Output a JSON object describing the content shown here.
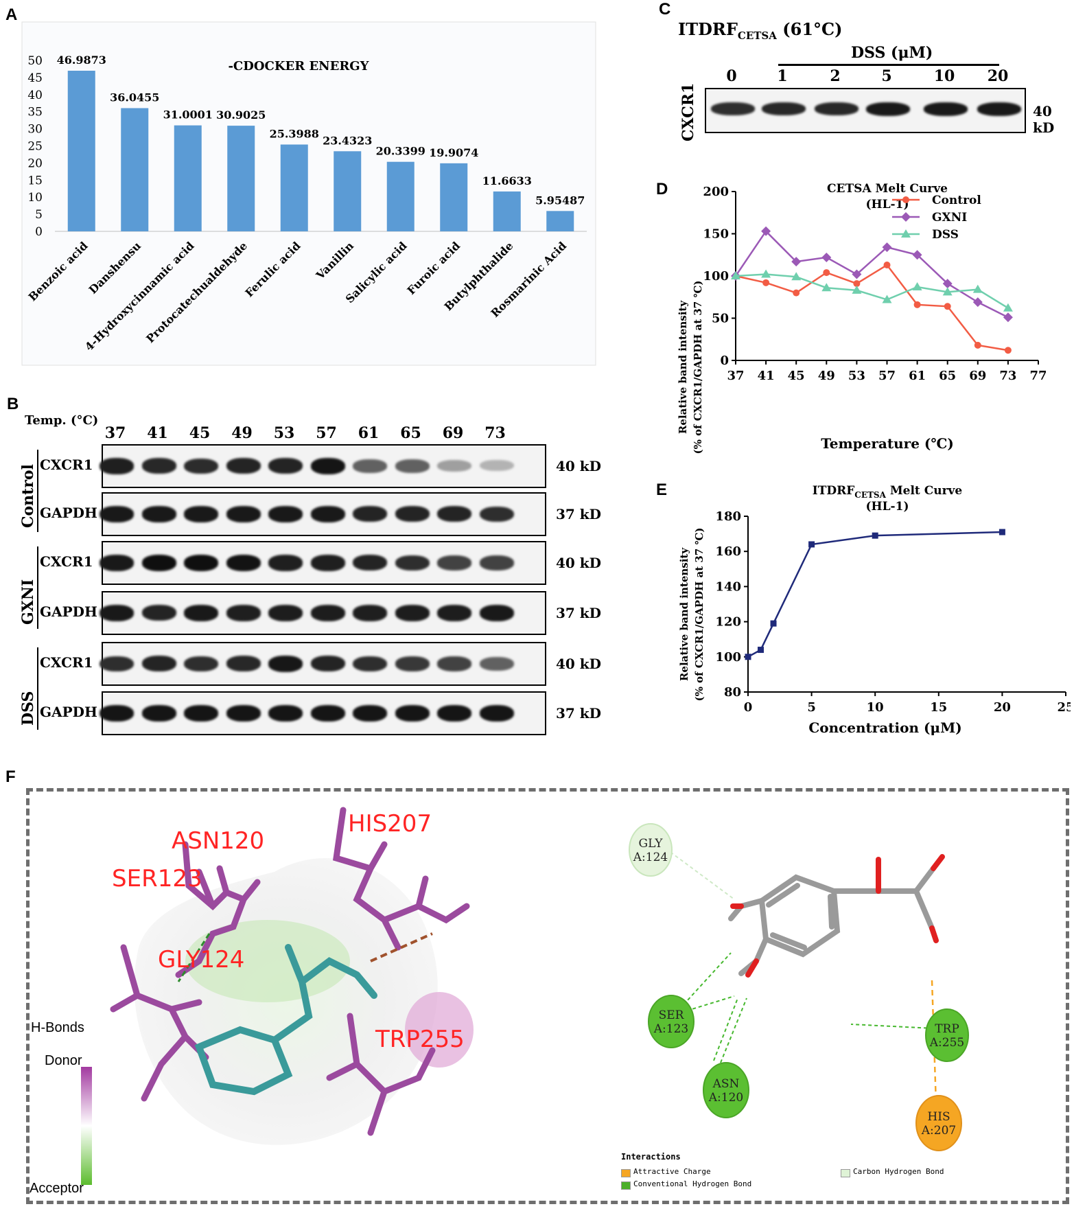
{
  "panels": {
    "A": "A",
    "B": "B",
    "C": "C",
    "D": "D",
    "E": "E",
    "F": "F"
  },
  "colors": {
    "bar": "#5b9bd5",
    "control": "#f25c44",
    "gxni": "#9b59b6",
    "dss": "#6fcfad",
    "itdrf": "#1f2a7a",
    "residue": "#ff2424",
    "ligand": "#3a9a9a"
  },
  "chart_data": [
    {
      "panel": "A",
      "type": "bar",
      "title": "-CDOCKER ENERGY",
      "categories": [
        "Benzoic acid",
        "Danshensu",
        "4-Hydroxycinnamic acid",
        "Protocatechualdehyde",
        "Ferulic acid",
        "Vanillin",
        "Salicylic acid",
        "Furoic acid",
        "Butylphthalide",
        "Rosmarinic Acid"
      ],
      "values": [
        46.9873,
        36.0455,
        31.0001,
        30.9025,
        25.3988,
        23.4323,
        20.3399,
        19.9074,
        11.6633,
        5.95487
      ],
      "value_labels": [
        "46.9873",
        "36.0455",
        "31.0001",
        "30.9025",
        "25.3988",
        "23.4323",
        "20.3399",
        "19.9074",
        "11.6633",
        "5.95487"
      ],
      "ylim": [
        0,
        50
      ],
      "yticks": [
        0,
        5,
        10,
        15,
        20,
        25,
        30,
        35,
        40,
        45,
        50
      ]
    },
    {
      "panel": "D",
      "type": "line",
      "title": "CETSA Melt Curve",
      "subtitle": "(HL-1)",
      "xlabel": "Temperature (℃)",
      "ylabel": "Relative band intensity",
      "ylabel2": "(% of CXCR1/GAPDH at 37 ℃)",
      "x": [
        37,
        41,
        45,
        49,
        53,
        57,
        61,
        65,
        69,
        73
      ],
      "xlim": [
        37,
        77
      ],
      "xticks": [
        37,
        41,
        45,
        49,
        53,
        57,
        61,
        65,
        69,
        73,
        77
      ],
      "ylim": [
        0,
        200
      ],
      "yticks": [
        0,
        50,
        100,
        150,
        200
      ],
      "legend": "top-right",
      "series": [
        {
          "name": "Control",
          "marker": "circle",
          "values": [
            100,
            92,
            80,
            104,
            91,
            113,
            66,
            64,
            18,
            12
          ]
        },
        {
          "name": "GXNI",
          "marker": "diamond",
          "values": [
            100,
            153,
            117,
            122,
            102,
            134,
            125,
            91,
            69,
            51
          ]
        },
        {
          "name": "DSS",
          "marker": "triangle",
          "values": [
            100,
            102,
            99,
            86,
            83,
            72,
            87,
            81,
            84,
            62
          ]
        }
      ]
    },
    {
      "panel": "E",
      "type": "line",
      "title": "ITDRF",
      "title_sub": "CETSA",
      "title_rest": " Melt Curve",
      "subtitle": "(HL-1)",
      "xlabel": "Concentration (μM)",
      "ylabel": "Relative band intensity",
      "ylabel2": "(% of CXCR1/GAPDH at 37 ℃)",
      "x": [
        0,
        1,
        2,
        5,
        10,
        20
      ],
      "xlim": [
        0,
        25
      ],
      "xticks": [
        0,
        5,
        10,
        15,
        20,
        25
      ],
      "ylim": [
        80,
        180
      ],
      "yticks": [
        80,
        100,
        120,
        140,
        160,
        180
      ],
      "series": [
        {
          "marker": "square",
          "values": [
            100,
            104,
            119,
            164,
            169,
            171
          ]
        }
      ]
    }
  ],
  "panel_b": {
    "temp_header": "Temp. (°C)",
    "temps": [
      "37",
      "41",
      "45",
      "49",
      "53",
      "57",
      "61",
      "65",
      "69",
      "73"
    ],
    "rows": [
      {
        "group": "Control",
        "label": "CXCR1",
        "mw": "40 kD",
        "intensity": [
          0.92,
          0.88,
          0.86,
          0.9,
          0.9,
          0.97,
          0.6,
          0.6,
          0.3,
          0.2
        ]
      },
      {
        "group": "",
        "label": "GAPDH",
        "mw": "37 kD",
        "intensity": [
          0.95,
          0.95,
          0.95,
          0.95,
          0.95,
          0.95,
          0.9,
          0.9,
          0.9,
          0.85
        ]
      },
      {
        "group": "GXNI",
        "label": "CXCR1",
        "mw": "40 kD",
        "intensity": [
          0.95,
          1,
          1,
          0.98,
          0.92,
          0.92,
          0.9,
          0.85,
          0.75,
          0.75
        ]
      },
      {
        "group": "",
        "label": "GAPDH",
        "mw": "37 kD",
        "intensity": [
          0.95,
          0.9,
          0.95,
          0.92,
          0.93,
          0.93,
          0.92,
          0.93,
          0.93,
          0.95
        ]
      },
      {
        "group": "DSS",
        "label": "CXCR1",
        "mw": "40 kD",
        "intensity": [
          0.85,
          0.9,
          0.85,
          0.88,
          0.96,
          0.9,
          0.85,
          0.8,
          0.75,
          0.6
        ]
      },
      {
        "group": "",
        "label": "GAPDH",
        "mw": "37 kD",
        "intensity": [
          0.97,
          0.97,
          0.97,
          0.97,
          0.97,
          0.97,
          0.97,
          0.97,
          0.97,
          0.97
        ]
      }
    ]
  },
  "panel_c": {
    "title": "ITDRF",
    "title_sub": "CETSA",
    "title_rest": " (61°C)",
    "treatment": "DSS (μM)",
    "concentrations": [
      "0",
      "1",
      "2",
      "5",
      "10",
      "20"
    ],
    "row_label": "CXCR1",
    "mw": "40 kD",
    "intensity": [
      0.85,
      0.88,
      0.88,
      0.95,
      0.95,
      0.95
    ]
  },
  "panel_f": {
    "residues_3d": [
      "ASN120",
      "SER123",
      "HIS207",
      "GLY124",
      "TRP255"
    ],
    "legend_title": "H-Bonds",
    "donor": "Donor",
    "acceptor": "Acceptor",
    "nodes": [
      {
        "label": "GLY\nA:124",
        "type": "carbon"
      },
      {
        "label": "SER\nA:123",
        "type": "conventional"
      },
      {
        "label": "ASN\nA:120",
        "type": "conventional"
      },
      {
        "label": "TRP\nA:255",
        "type": "conventional"
      },
      {
        "label": "HIS\nA:207",
        "type": "charge"
      }
    ],
    "interactions_title": "Interactions",
    "interactions": [
      {
        "label": "Attractive Charge",
        "color": "#f5a623"
      },
      {
        "label": "Conventional Hydrogen Bond",
        "color": "#4caf2a"
      },
      {
        "label": "Carbon Hydrogen Bond",
        "color": "#dff3d6"
      }
    ]
  }
}
